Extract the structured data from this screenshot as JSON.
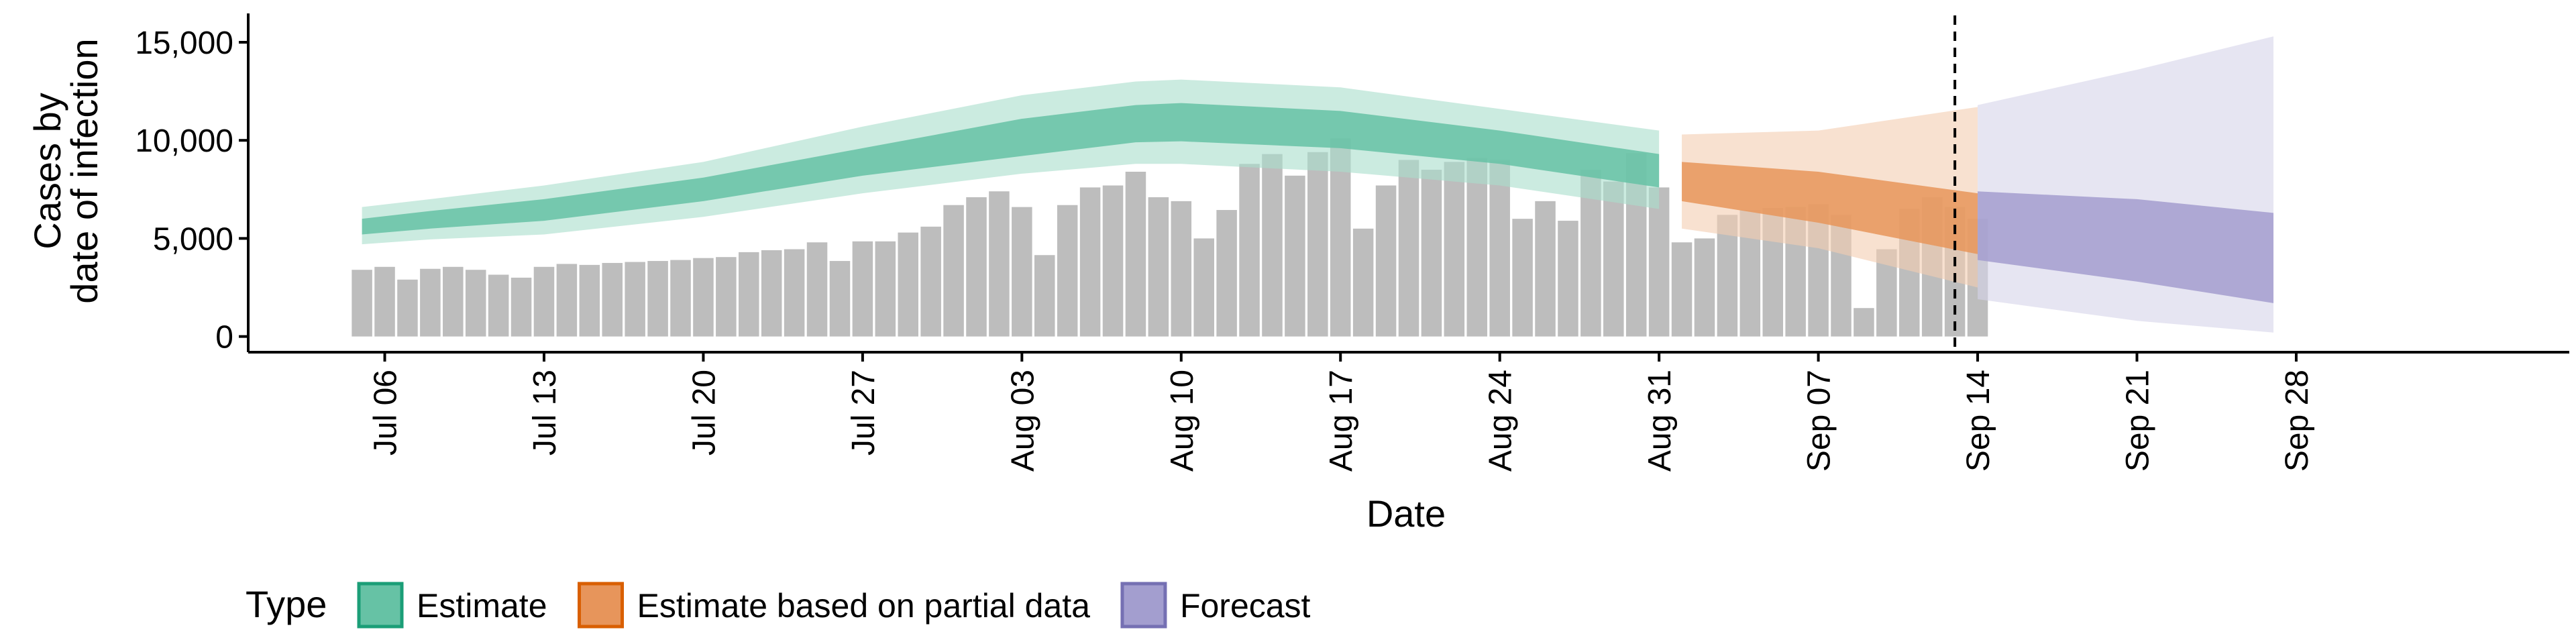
{
  "chart_data": {
    "type": "area",
    "xlabel": "Date",
    "ylabel_lines": [
      "Cases by",
      "date of infection"
    ],
    "x_tick_labels": [
      "Jul 06",
      "Jul 13",
      "Jul 20",
      "Jul 27",
      "Aug 03",
      "Aug 10",
      "Aug 17",
      "Aug 24",
      "Aug 31",
      "Sep 07",
      "Sep 14",
      "Sep 21",
      "Sep 28"
    ],
    "y_ticks": [
      0,
      5000,
      10000,
      15000
    ],
    "y_tick_labels": [
      "0",
      "5,000",
      "10,000",
      "15,000"
    ],
    "ylim": [
      -800,
      16300
    ],
    "x_range_days": [
      -6.0,
      96.0
    ],
    "x_date_origin": "Jul 06",
    "forecast_date_line": "Sep 13",
    "legend": {
      "title": "Type",
      "position": "bottom-left",
      "items": [
        {
          "label": "Estimate",
          "fill": "#66c2a5",
          "stroke": "#1b9e77"
        },
        {
          "label": "Estimate based on partial data",
          "fill": "#e7955b",
          "stroke": "#d95f02"
        },
        {
          "label": "Forecast",
          "fill": "#a39ecf",
          "stroke": "#7570b3"
        }
      ]
    },
    "colors": {
      "bars": "#bdbdbd",
      "estimate_inner": "#66c2a5",
      "estimate_outer": "#a8ddcc",
      "partial_inner": "#e7955b",
      "partial_outer": "#f3cdb1",
      "forecast_inner": "#a39ecf",
      "forecast_outer": "#d6d3ea"
    },
    "bars": [
      {
        "date": "Jul 05",
        "value": 3400
      },
      {
        "date": "Jul 06",
        "value": 3550
      },
      {
        "date": "Jul 07",
        "value": 2900
      },
      {
        "date": "Jul 08",
        "value": 3450
      },
      {
        "date": "Jul 09",
        "value": 3550
      },
      {
        "date": "Jul 10",
        "value": 3400
      },
      {
        "date": "Jul 11",
        "value": 3150
      },
      {
        "date": "Jul 12",
        "value": 3000
      },
      {
        "date": "Jul 13",
        "value": 3550
      },
      {
        "date": "Jul 14",
        "value": 3700
      },
      {
        "date": "Jul 15",
        "value": 3650
      },
      {
        "date": "Jul 16",
        "value": 3750
      },
      {
        "date": "Jul 17",
        "value": 3800
      },
      {
        "date": "Jul 18",
        "value": 3850
      },
      {
        "date": "Jul 19",
        "value": 3900
      },
      {
        "date": "Jul 20",
        "value": 4000
      },
      {
        "date": "Jul 21",
        "value": 4050
      },
      {
        "date": "Jul 22",
        "value": 4300
      },
      {
        "date": "Jul 23",
        "value": 4400
      },
      {
        "date": "Jul 24",
        "value": 4450
      },
      {
        "date": "Jul 25",
        "value": 4800
      },
      {
        "date": "Jul 26",
        "value": 3850
      },
      {
        "date": "Jul 27",
        "value": 4850
      },
      {
        "date": "Jul 28",
        "value": 4850
      },
      {
        "date": "Jul 29",
        "value": 5300
      },
      {
        "date": "Jul 30",
        "value": 5600
      },
      {
        "date": "Jul 31",
        "value": 6700
      },
      {
        "date": "Aug 01",
        "value": 7100
      },
      {
        "date": "Aug 02",
        "value": 7400
      },
      {
        "date": "Aug 03",
        "value": 6600
      },
      {
        "date": "Aug 04",
        "value": 4150
      },
      {
        "date": "Aug 05",
        "value": 6700
      },
      {
        "date": "Aug 06",
        "value": 7600
      },
      {
        "date": "Aug 07",
        "value": 7700
      },
      {
        "date": "Aug 08",
        "value": 8400
      },
      {
        "date": "Aug 09",
        "value": 7100
      },
      {
        "date": "Aug 10",
        "value": 6900
      },
      {
        "date": "Aug 11",
        "value": 5000
      },
      {
        "date": "Aug 12",
        "value": 6450
      },
      {
        "date": "Aug 13",
        "value": 8800
      },
      {
        "date": "Aug 14",
        "value": 9300
      },
      {
        "date": "Aug 15",
        "value": 8200
      },
      {
        "date": "Aug 16",
        "value": 9400
      },
      {
        "date": "Aug 17",
        "value": 10100
      },
      {
        "date": "Aug 18",
        "value": 5500
      },
      {
        "date": "Aug 19",
        "value": 7700
      },
      {
        "date": "Aug 20",
        "value": 9000
      },
      {
        "date": "Aug 21",
        "value": 8500
      },
      {
        "date": "Aug 22",
        "value": 8900
      },
      {
        "date": "Aug 23",
        "value": 9100
      },
      {
        "date": "Aug 24",
        "value": 9000
      },
      {
        "date": "Aug 25",
        "value": 6000
      },
      {
        "date": "Aug 26",
        "value": 6900
      },
      {
        "date": "Aug 27",
        "value": 5900
      },
      {
        "date": "Aug 28",
        "value": 8500
      },
      {
        "date": "Aug 29",
        "value": 7900
      },
      {
        "date": "Aug 30",
        "value": 9350
      },
      {
        "date": "Aug 31",
        "value": 7600
      },
      {
        "date": "Sep 01",
        "value": 4800
      },
      {
        "date": "Sep 02",
        "value": 5000
      },
      {
        "date": "Sep 03",
        "value": 6200
      },
      {
        "date": "Sep 04",
        "value": 6450
      },
      {
        "date": "Sep 05",
        "value": 6550
      },
      {
        "date": "Sep 06",
        "value": 6600
      },
      {
        "date": "Sep 07",
        "value": 6750
      },
      {
        "date": "Sep 08",
        "value": 6200
      },
      {
        "date": "Sep 09",
        "value": 1450
      },
      {
        "date": "Sep 10",
        "value": 4450
      },
      {
        "date": "Sep 11",
        "value": 6500
      },
      {
        "date": "Sep 12",
        "value": 7100
      },
      {
        "date": "Sep 13",
        "value": 6600
      },
      {
        "date": "Sep 14",
        "value": 6000
      }
    ],
    "bands": [
      {
        "type": "Estimate",
        "color_key": "estimate",
        "x": [
          "Jul 05",
          "Jul 08",
          "Jul 13",
          "Jul 20",
          "Jul 27",
          "Aug 03",
          "Aug 08",
          "Aug 10",
          "Aug 17",
          "Aug 24",
          "Aug 31"
        ],
        "outer_lo": [
          4700,
          4950,
          5200,
          6100,
          7300,
          8300,
          8800,
          8800,
          8400,
          7700,
          6500
        ],
        "outer_hi": [
          6600,
          7000,
          7700,
          8900,
          10700,
          12300,
          13000,
          13100,
          12700,
          11600,
          10500
        ],
        "inner_lo": [
          5200,
          5500,
          5900,
          6900,
          8200,
          9200,
          9900,
          9950,
          9600,
          8800,
          7600
        ],
        "inner_hi": [
          6000,
          6400,
          7000,
          8100,
          9600,
          11100,
          11800,
          11900,
          11500,
          10500,
          9300
        ]
      },
      {
        "type": "Estimate based on partial data",
        "color_key": "partial",
        "x": [
          "Sep 01",
          "Sep 07",
          "Sep 14"
        ],
        "outer_lo": [
          5500,
          4500,
          2500
        ],
        "outer_hi": [
          10300,
          10500,
          11700
        ],
        "inner_lo": [
          6900,
          5800,
          4200
        ],
        "inner_hi": [
          8900,
          8400,
          7300
        ]
      },
      {
        "type": "Forecast",
        "color_key": "forecast",
        "x": [
          "Sep 14",
          "Sep 21",
          "Sep 27"
        ],
        "outer_lo": [
          1900,
          800,
          200
        ],
        "outer_hi": [
          11800,
          13600,
          15300
        ],
        "inner_lo": [
          3900,
          2800,
          1700
        ],
        "inner_hi": [
          7400,
          7000,
          6300
        ]
      }
    ]
  }
}
